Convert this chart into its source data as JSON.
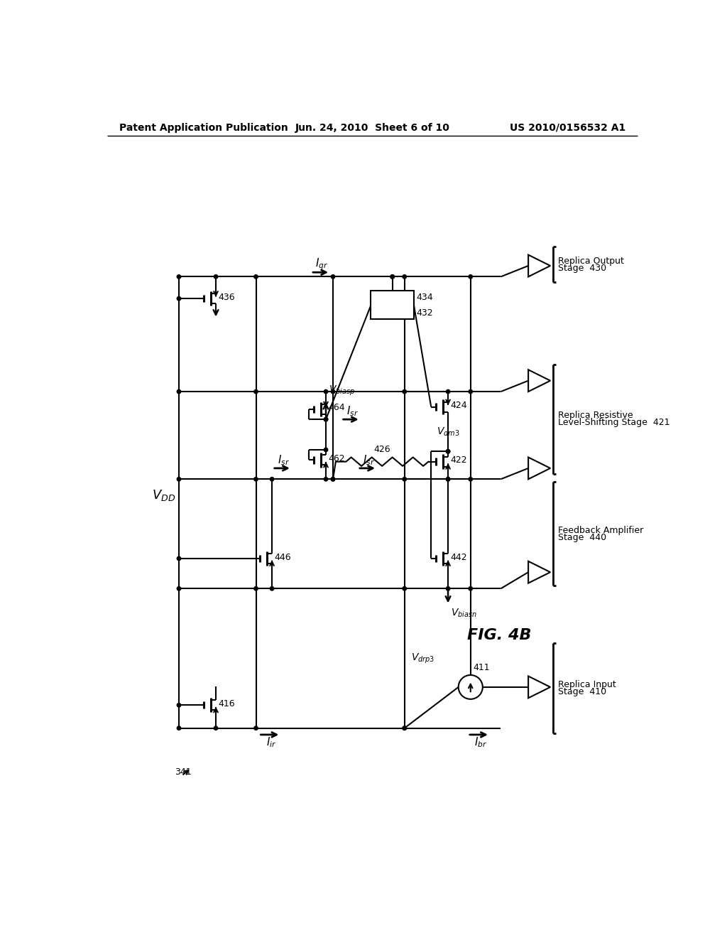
{
  "bg_color": "#ffffff",
  "header_left": "Patent Application Publication",
  "header_center": "Jun. 24, 2010  Sheet 6 of 10",
  "header_right": "US 2010/0156532 A1",
  "fig_label": "FIG. 4B",
  "ref_341": "341"
}
